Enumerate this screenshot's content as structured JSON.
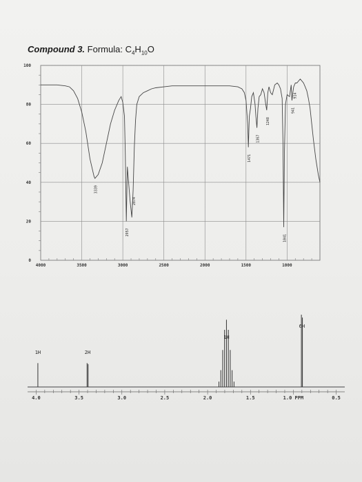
{
  "title": {
    "compound": "Compound 3.",
    "formula_prefix": "Formula: C",
    "c_count": "4",
    "h_letter": "H",
    "h_count": "10",
    "o_letter": "O"
  },
  "chart_data": [
    {
      "type": "line",
      "name": "IR spectrum",
      "x_ticks": [
        "4000",
        "3500",
        "3000",
        "2500",
        "2000",
        "1500",
        "1000"
      ],
      "y_ticks": [
        "100",
        "80",
        "60",
        "40",
        "20",
        "0"
      ],
      "xlim": [
        4000,
        600
      ],
      "ylim": [
        0,
        100
      ],
      "grid": true,
      "x": [
        4000,
        3900,
        3800,
        3700,
        3650,
        3600,
        3550,
        3500,
        3450,
        3400,
        3350,
        3339,
        3300,
        3250,
        3200,
        3150,
        3100,
        3050,
        3020,
        3000,
        2980,
        2970,
        2957,
        2945,
        2930,
        2910,
        2890,
        2874,
        2860,
        2845,
        2830,
        2800,
        2750,
        2700,
        2650,
        2600,
        2500,
        2400,
        2300,
        2200,
        2100,
        2000,
        1900,
        1800,
        1700,
        1600,
        1550,
        1520,
        1500,
        1480,
        1471,
        1460,
        1445,
        1430,
        1410,
        1390,
        1380,
        1367,
        1355,
        1340,
        1320,
        1300,
        1280,
        1260,
        1248,
        1235,
        1220,
        1200,
        1180,
        1150,
        1120,
        1100,
        1080,
        1060,
        1050,
        1041,
        1032,
        1020,
        1000,
        970,
        950,
        941,
        930,
        920,
        900,
        880,
        860,
        840,
        820,
        800,
        780,
        760,
        740,
        720,
        700,
        680,
        650,
        620,
        600
      ],
      "y": [
        90,
        90,
        90,
        89.5,
        89,
        87,
        83,
        76,
        66,
        52,
        43,
        42,
        44,
        50,
        60,
        70,
        77,
        82,
        84,
        81,
        74,
        55,
        20,
        48,
        40,
        30,
        22,
        36,
        58,
        72,
        80,
        84,
        86,
        87,
        88,
        88.5,
        89,
        89.5,
        89.5,
        89.5,
        89.5,
        89.5,
        89.5,
        89.5,
        89.5,
        89,
        88,
        86,
        82,
        70,
        58,
        74,
        78,
        84,
        86,
        80,
        74,
        68,
        78,
        84,
        85,
        88,
        86,
        80,
        77,
        86,
        89,
        86,
        85,
        90,
        91,
        90,
        88,
        83,
        60,
        17,
        55,
        80,
        85,
        84,
        90,
        82,
        86,
        89,
        91,
        91,
        92,
        93,
        92,
        91,
        89,
        87,
        83,
        78,
        70,
        62,
        52,
        44,
        40
      ],
      "peak_labels": [
        {
          "x": 3339,
          "label": "3339"
        },
        {
          "x": 2957,
          "label": "2957"
        },
        {
          "x": 2874,
          "label": "2874"
        },
        {
          "x": 1471,
          "label": "1471"
        },
        {
          "x": 1367,
          "label": "1367"
        },
        {
          "x": 1248,
          "label": "1248"
        },
        {
          "x": 1041,
          "label": "1041"
        },
        {
          "x": 941,
          "label": "941"
        },
        {
          "x": 914,
          "label": "914"
        }
      ]
    },
    {
      "type": "line",
      "name": "1H NMR spectrum",
      "x_ticks": [
        "4.0",
        "3.5",
        "3.0",
        "2.5",
        "2.0",
        "1.5",
        "1.0 PPM",
        "0.5"
      ],
      "xlim": [
        4.1,
        0.4
      ],
      "peaks": [
        {
          "ppm": 3.98,
          "height": 1.0,
          "multiplicity": "singlet"
        },
        {
          "ppm": 3.4,
          "height": 1.0,
          "multiplicity": "doublet"
        },
        {
          "ppm": 1.78,
          "height": 1.0,
          "multiplicity": "nonet"
        },
        {
          "ppm": 0.9,
          "height": 1.0,
          "multiplicity": "doublet"
        }
      ],
      "integrations": [
        {
          "ppm": 3.98,
          "label": "1H"
        },
        {
          "ppm": 3.4,
          "label": "2H"
        },
        {
          "ppm": 1.78,
          "label": "1H"
        },
        {
          "ppm": 0.9,
          "label": "6H"
        }
      ]
    }
  ]
}
